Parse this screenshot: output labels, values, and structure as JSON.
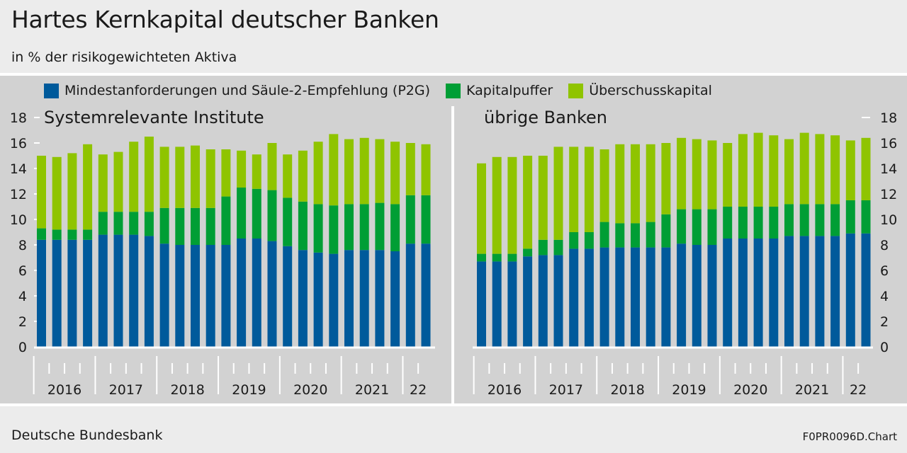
{
  "header": {
    "title": "Hartes Kernkapital deutscher Banken",
    "subtitle": "in % der risikogewichteten Aktiva"
  },
  "legend": [
    {
      "label": "Mindestanforderungen und Säule-2-Empfehlung (P2G)",
      "color": "#005a9b"
    },
    {
      "label": "Kapitalpuffer",
      "color": "#009e35"
    },
    {
      "label": "Überschusskapital",
      "color": "#8fc400"
    }
  ],
  "footer": {
    "source": "Deutsche Bundesbank",
    "code": "F0PR0096D.Chart"
  },
  "chart_data": [
    {
      "type": "bar",
      "stacked": true,
      "title": "Systemrelevante Institute",
      "ylim": [
        0,
        18
      ],
      "yticks": [
        "0",
        "2",
        "4",
        "6",
        "8",
        "10",
        "12",
        "14",
        "16",
        "18"
      ],
      "yaxis_side": "left",
      "x_labels": [
        "2016",
        "2017",
        "2018",
        "2019",
        "2020",
        "2021",
        "22"
      ],
      "periods": "quarterly, 2016 Q1 – 2022 Q2",
      "series": [
        {
          "name": "Mindestanforderungen und Säule-2-Empfehlung (P2G)",
          "values": [
            8.4,
            8.4,
            8.4,
            8.4,
            8.8,
            8.8,
            8.8,
            8.7,
            8.1,
            8.0,
            8.0,
            8.0,
            8.0,
            8.5,
            8.5,
            8.3,
            7.9,
            7.6,
            7.4,
            7.3,
            7.6,
            7.6,
            7.6,
            7.5,
            8.1,
            8.1
          ]
        },
        {
          "name": "Kapitalpuffer",
          "values": [
            0.9,
            0.8,
            0.8,
            0.8,
            1.8,
            1.8,
            1.8,
            1.9,
            2.8,
            2.9,
            2.9,
            2.9,
            3.8,
            4.0,
            3.9,
            4.0,
            3.8,
            3.8,
            3.8,
            3.8,
            3.6,
            3.6,
            3.7,
            3.7,
            3.8,
            3.8
          ]
        },
        {
          "name": "Überschusskapital",
          "values": [
            5.7,
            5.7,
            6.0,
            6.7,
            4.5,
            4.7,
            5.5,
            5.9,
            4.8,
            4.8,
            4.9,
            4.6,
            3.7,
            2.9,
            2.7,
            3.7,
            3.4,
            4.0,
            4.9,
            5.6,
            5.1,
            5.2,
            5.0,
            4.9,
            4.1,
            4.0
          ]
        }
      ]
    },
    {
      "type": "bar",
      "stacked": true,
      "title": "übrige Banken",
      "ylim": [
        0,
        18
      ],
      "yticks": [
        "0",
        "2",
        "4",
        "6",
        "8",
        "10",
        "12",
        "14",
        "16",
        "18"
      ],
      "yaxis_side": "right",
      "x_labels": [
        "2016",
        "2017",
        "2018",
        "2019",
        "2020",
        "2021",
        "22"
      ],
      "periods": "quarterly, 2016 Q1 – 2022 Q2",
      "series": [
        {
          "name": "Mindestanforderungen und Säule-2-Empfehlung (P2G)",
          "values": [
            6.7,
            6.7,
            6.7,
            7.1,
            7.2,
            7.2,
            7.7,
            7.7,
            7.8,
            7.8,
            7.8,
            7.8,
            7.8,
            8.1,
            8.0,
            8.0,
            8.5,
            8.5,
            8.5,
            8.5,
            8.7,
            8.7,
            8.7,
            8.7,
            8.9,
            8.9
          ]
        },
        {
          "name": "Kapitalpuffer",
          "values": [
            0.6,
            0.6,
            0.6,
            0.6,
            1.2,
            1.2,
            1.3,
            1.3,
            2.0,
            1.9,
            1.9,
            2.0,
            2.6,
            2.7,
            2.8,
            2.8,
            2.5,
            2.5,
            2.5,
            2.5,
            2.5,
            2.5,
            2.5,
            2.5,
            2.6,
            2.6
          ]
        },
        {
          "name": "Überschusskapital",
          "values": [
            7.1,
            7.6,
            7.6,
            7.3,
            6.6,
            7.3,
            6.7,
            6.7,
            5.7,
            6.2,
            6.2,
            6.1,
            5.6,
            5.6,
            5.5,
            5.4,
            5.0,
            5.7,
            5.8,
            5.6,
            5.1,
            5.6,
            5.5,
            5.4,
            4.7,
            4.9
          ]
        }
      ]
    }
  ]
}
